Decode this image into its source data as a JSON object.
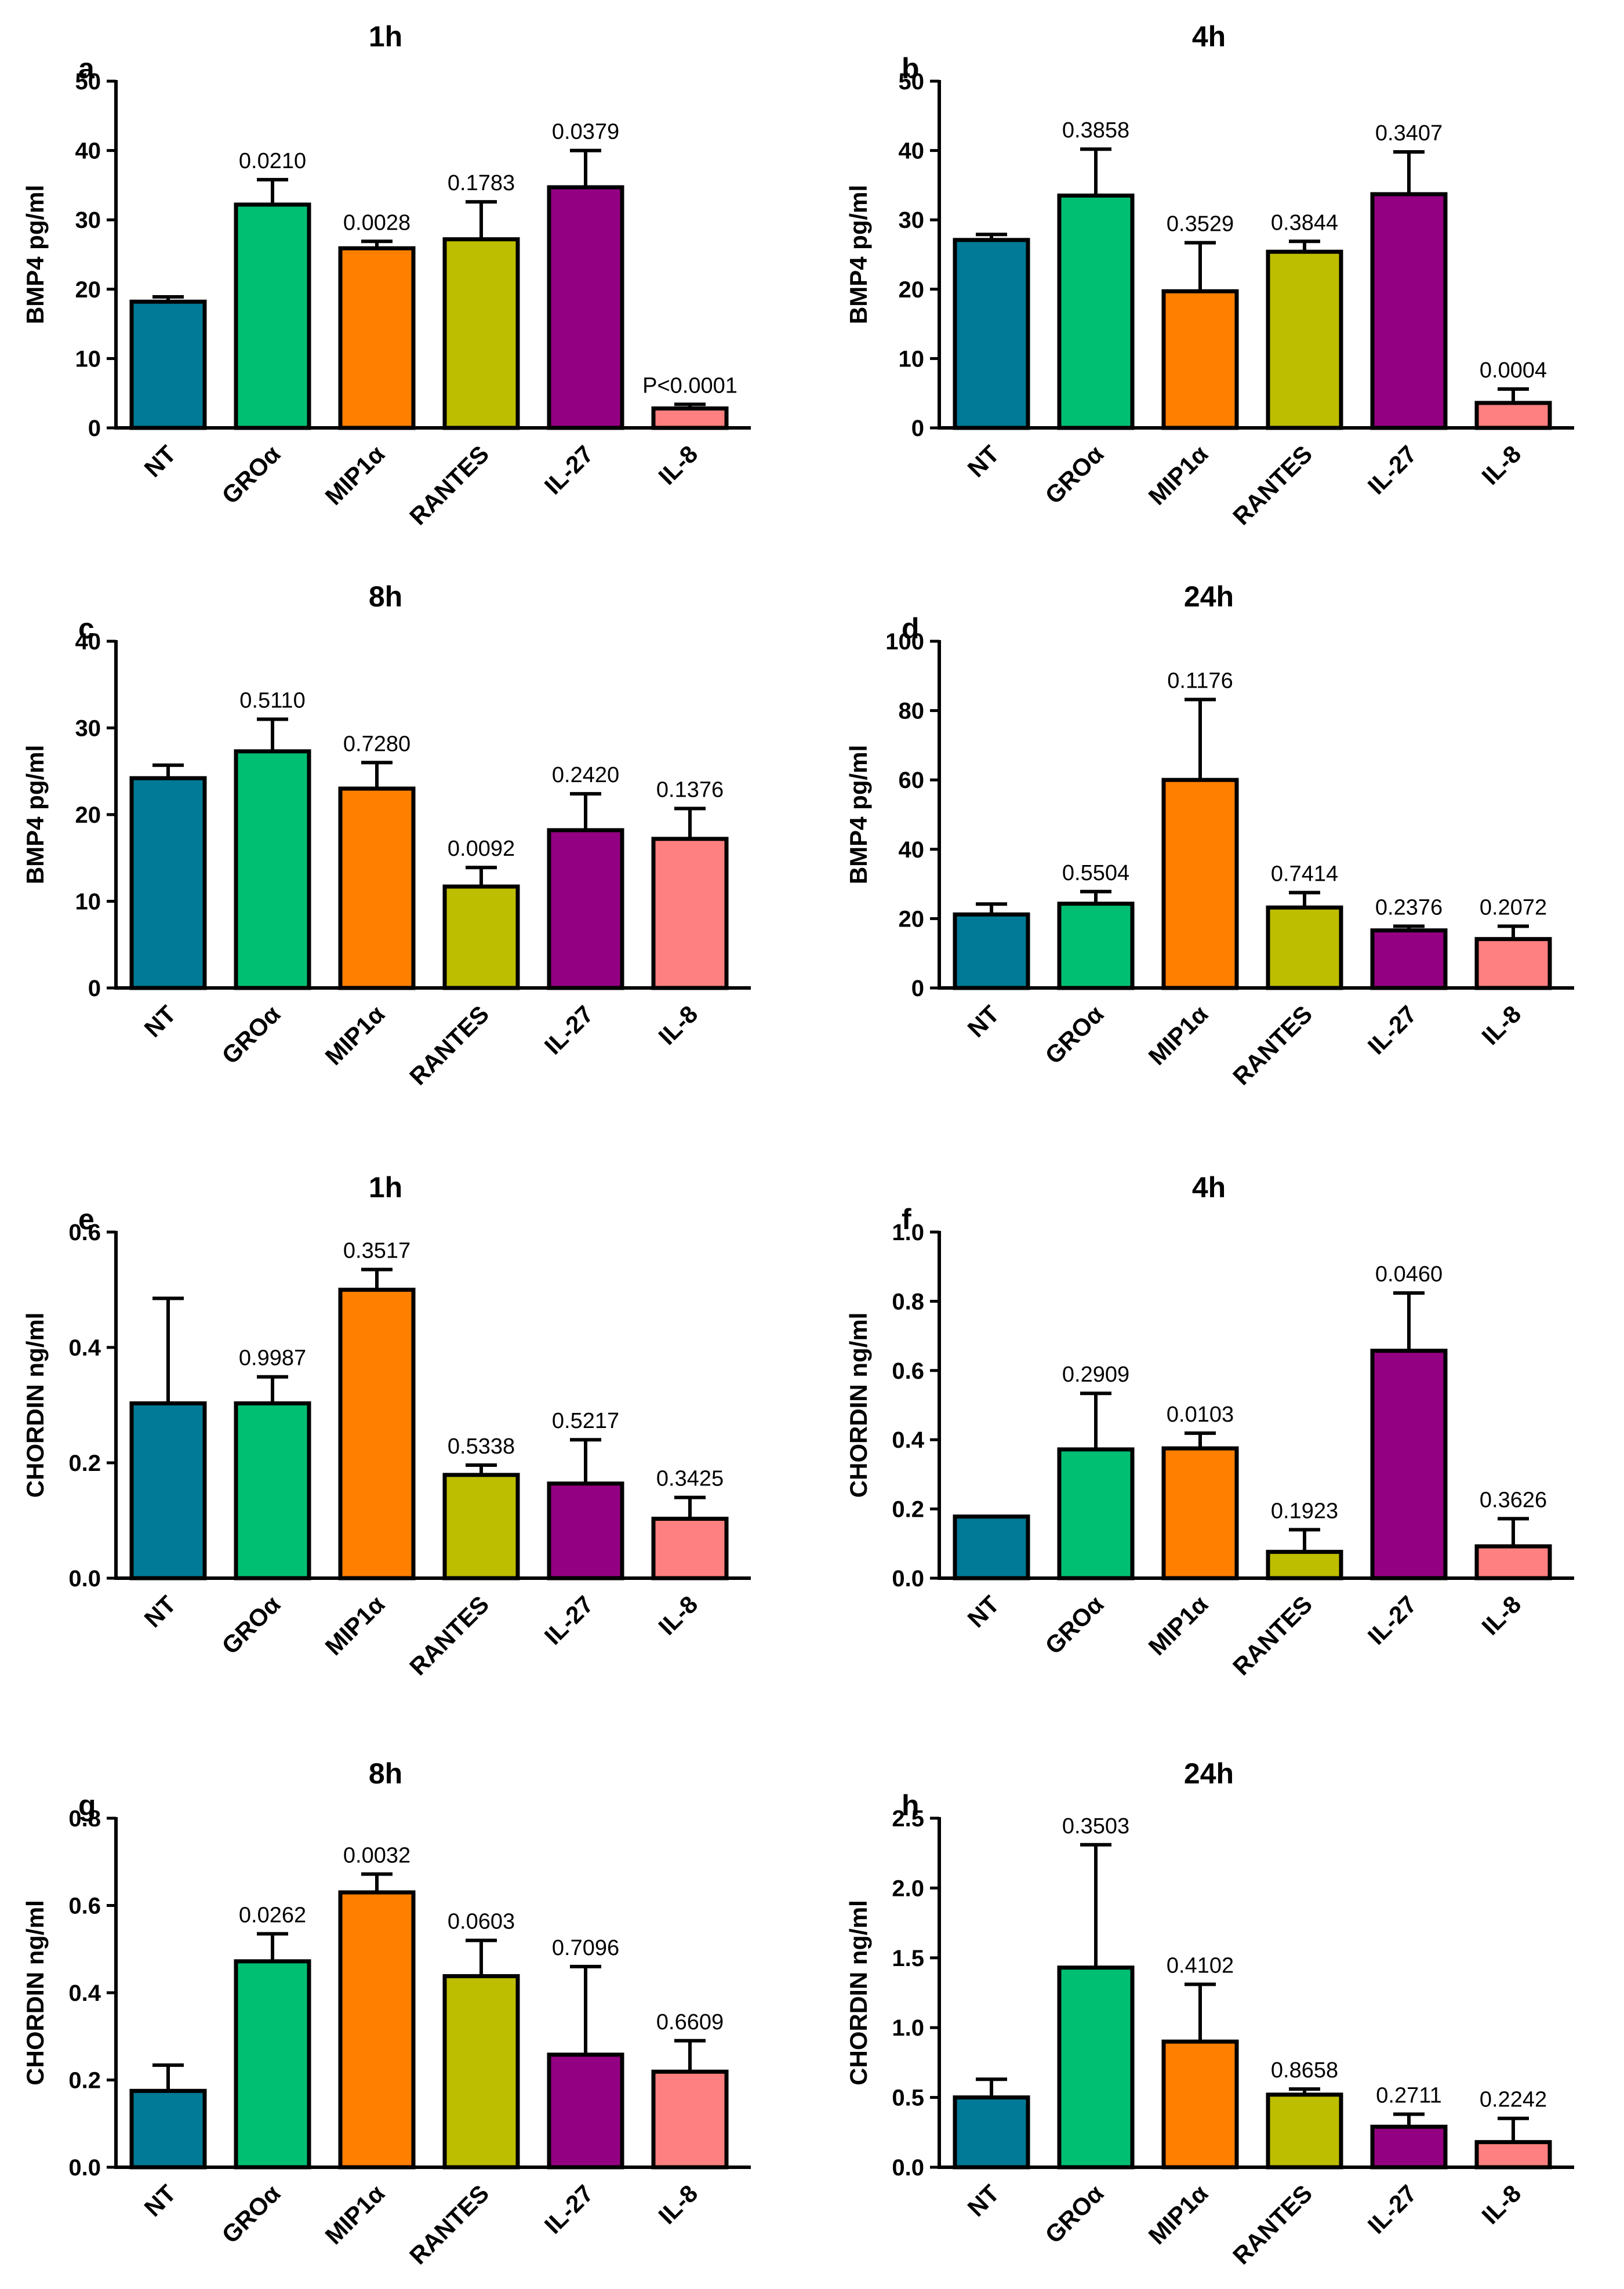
{
  "colors": {
    "NT": "#007a96",
    "GROα": "#00bf73",
    "MIP1α": "#ff7f00",
    "RANTES": "#bebe00",
    "IL-27": "#940082",
    "IL-8": "#ff8080"
  },
  "chart_data": [
    {
      "type": "bar",
      "panel": "a",
      "title": "1h",
      "ylabel": "BMP4 pg/ml",
      "ylim": [
        0,
        50
      ],
      "yticks": [
        "0",
        "10",
        "20",
        "30",
        "40",
        "50"
      ],
      "categories": [
        "NT",
        "GROα",
        "MIP1α",
        "RANTES",
        "IL-27",
        "IL-8"
      ],
      "values": [
        18.2,
        32.2,
        25.9,
        27.2,
        34.7,
        2.8
      ],
      "error_upper": [
        18.9,
        35.8,
        26.9,
        32.6,
        40.0,
        3.4
      ],
      "pvalues": [
        "",
        "0.0210",
        "0.0028",
        "0.1783",
        "0.0379",
        "P<0.0001"
      ]
    },
    {
      "type": "bar",
      "panel": "b",
      "title": "4h",
      "ylabel": "BMP4 pg/ml",
      "ylim": [
        0,
        50
      ],
      "yticks": [
        "0",
        "10",
        "20",
        "30",
        "40",
        "50"
      ],
      "categories": [
        "NT",
        "GROα",
        "MIP1α",
        "RANTES",
        "IL-27",
        "IL-8"
      ],
      "values": [
        27.1,
        33.5,
        19.7,
        25.4,
        33.7,
        3.6
      ],
      "error_upper": [
        27.9,
        40.2,
        26.7,
        26.9,
        39.8,
        5.6
      ],
      "pvalues": [
        "",
        "0.3858",
        "0.3529",
        "0.3844",
        "0.3407",
        "0.0004"
      ]
    },
    {
      "type": "bar",
      "panel": "c",
      "title": "8h",
      "ylabel": "BMP4 pg/ml",
      "ylim": [
        0,
        40
      ],
      "yticks": [
        "0",
        "10",
        "20",
        "30",
        "40"
      ],
      "categories": [
        "NT",
        "GROα",
        "MIP1α",
        "RANTES",
        "IL-27",
        "IL-8"
      ],
      "values": [
        24.2,
        27.3,
        23.0,
        11.7,
        18.2,
        17.2
      ],
      "error_upper": [
        25.7,
        31.0,
        26.0,
        13.9,
        22.4,
        20.7
      ],
      "pvalues": [
        "",
        "0.5110",
        "0.7280",
        "0.0092",
        "0.2420",
        "0.1376"
      ]
    },
    {
      "type": "bar",
      "panel": "d",
      "title": "24h",
      "ylabel": "BMP4 pg/ml",
      "ylim": [
        0,
        100
      ],
      "yticks": [
        "0",
        "20",
        "40",
        "60",
        "80",
        "100"
      ],
      "categories": [
        "NT",
        "GROα",
        "MIP1α",
        "RANTES",
        "IL-27",
        "IL-8"
      ],
      "values": [
        21.2,
        24.3,
        60.0,
        23.2,
        16.6,
        14.1
      ],
      "error_upper": [
        24.2,
        27.8,
        83.2,
        27.5,
        17.8,
        17.8
      ],
      "pvalues": [
        "",
        "0.5504",
        "0.1176",
        "0.7414",
        "0.2376",
        "0.2072"
      ]
    },
    {
      "type": "bar",
      "panel": "e",
      "title": "1h",
      "ylabel": "CHORDIN ng/ml",
      "ylim": [
        0,
        0.6
      ],
      "yticks": [
        "0.0",
        "0.2",
        "0.4",
        "0.6"
      ],
      "categories": [
        "NT",
        "GROα",
        "MIP1α",
        "RANTES",
        "IL-27",
        "IL-8"
      ],
      "values": [
        0.303,
        0.303,
        0.5,
        0.179,
        0.164,
        0.103
      ],
      "error_upper": [
        0.485,
        0.349,
        0.535,
        0.196,
        0.24,
        0.14
      ],
      "pvalues": [
        "",
        "0.9987",
        "0.3517",
        "0.5338",
        "0.5217",
        "0.3425"
      ]
    },
    {
      "type": "bar",
      "panel": "f",
      "title": "4h",
      "ylabel": "CHORDIN ng/ml",
      "ylim": [
        0,
        1.0
      ],
      "yticks": [
        "0.0",
        "0.2",
        "0.4",
        "0.6",
        "0.8",
        "1.0"
      ],
      "categories": [
        "NT",
        "GROα",
        "MIP1α",
        "RANTES",
        "IL-27",
        "IL-8"
      ],
      "values": [
        0.178,
        0.372,
        0.375,
        0.076,
        0.657,
        0.092
      ],
      "error_upper": [
        0.178,
        0.534,
        0.419,
        0.14,
        0.824,
        0.172
      ],
      "pvalues": [
        "",
        "0.2909",
        "0.0103",
        "0.1923",
        "0.0460",
        "0.3626"
      ]
    },
    {
      "type": "bar",
      "panel": "g",
      "title": "8h",
      "ylabel": "CHORDIN ng/ml",
      "ylim": [
        0,
        0.8
      ],
      "yticks": [
        "0.0",
        "0.2",
        "0.4",
        "0.6",
        "0.8"
      ],
      "categories": [
        "NT",
        "GROα",
        "MIP1α",
        "RANTES",
        "IL-27",
        "IL-8"
      ],
      "values": [
        0.175,
        0.472,
        0.63,
        0.438,
        0.258,
        0.219
      ],
      "error_upper": [
        0.234,
        0.535,
        0.672,
        0.52,
        0.46,
        0.29
      ],
      "pvalues": [
        "",
        "0.0262",
        "0.0032",
        "0.0603",
        "0.7096",
        "0.6609"
      ]
    },
    {
      "type": "bar",
      "panel": "h",
      "title": "24h",
      "ylabel": "CHORDIN ng/ml",
      "ylim": [
        0,
        2.5
      ],
      "yticks": [
        "0.0",
        "0.5",
        "1.0",
        "1.5",
        "2.0",
        "2.5"
      ],
      "categories": [
        "NT",
        "GROα",
        "MIP1α",
        "RANTES",
        "IL-27",
        "IL-8"
      ],
      "values": [
        0.5,
        1.43,
        0.9,
        0.52,
        0.29,
        0.18
      ],
      "error_upper": [
        0.63,
        2.31,
        1.31,
        0.56,
        0.38,
        0.35
      ],
      "pvalues": [
        "",
        "0.3503",
        "0.4102",
        "0.8658",
        "0.2711",
        "0.2242"
      ]
    }
  ]
}
